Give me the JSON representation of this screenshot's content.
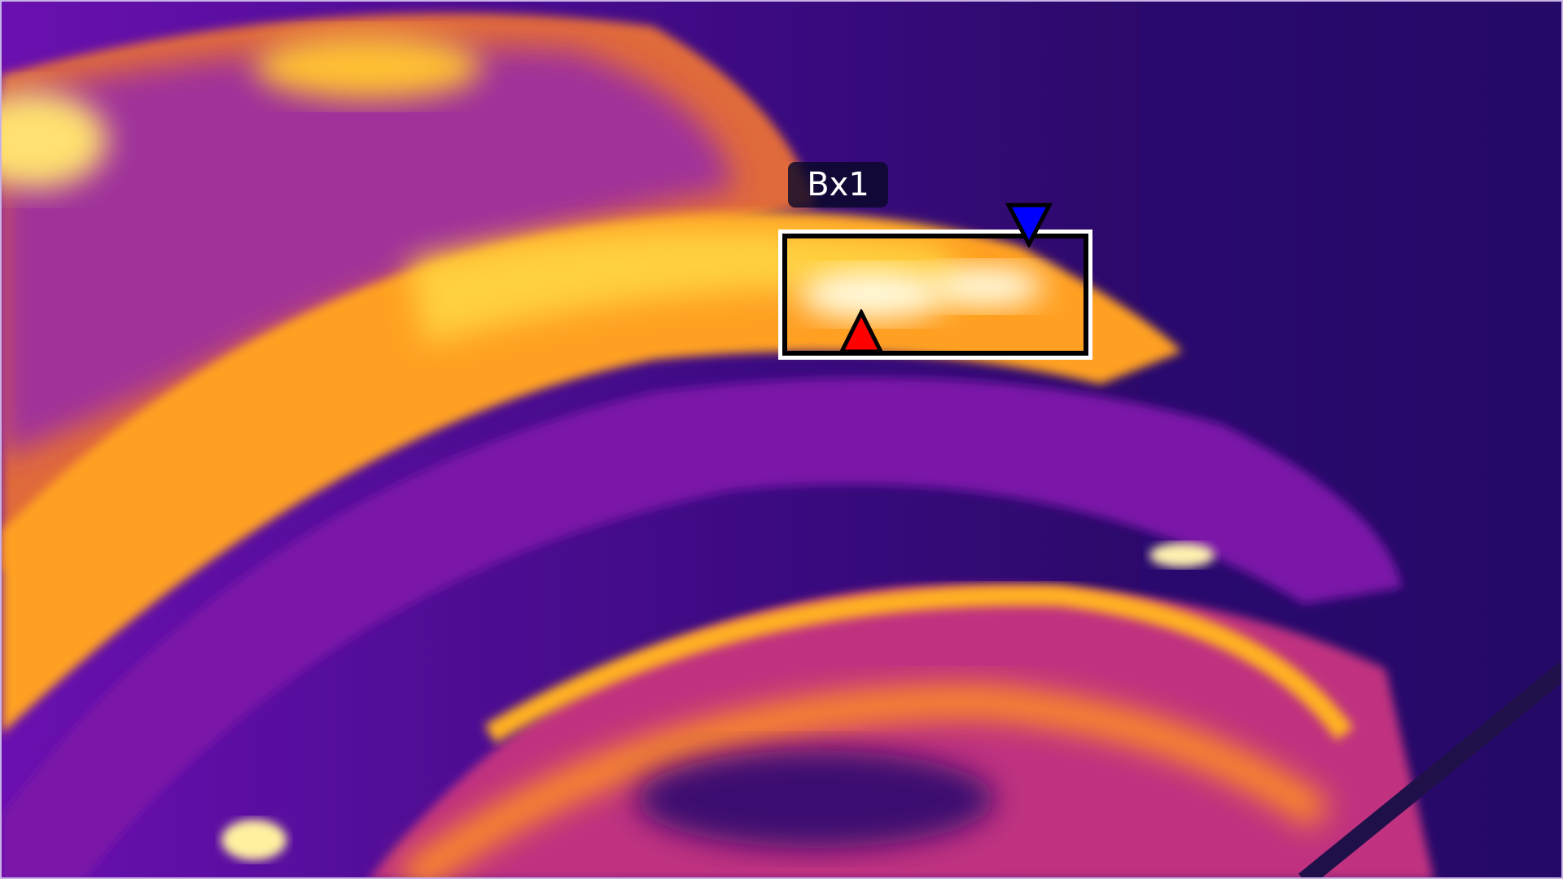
{
  "measurement": {
    "box_label": "Bx1",
    "max_marker_color": "#ff0000",
    "min_marker_color": "#0000ff",
    "box_color": "#000000"
  },
  "palette": [
    "#14052e",
    "#4a0a90",
    "#8a10b0",
    "#d4307a",
    "#f08020",
    "#ffc000",
    "#ffffe0"
  ]
}
